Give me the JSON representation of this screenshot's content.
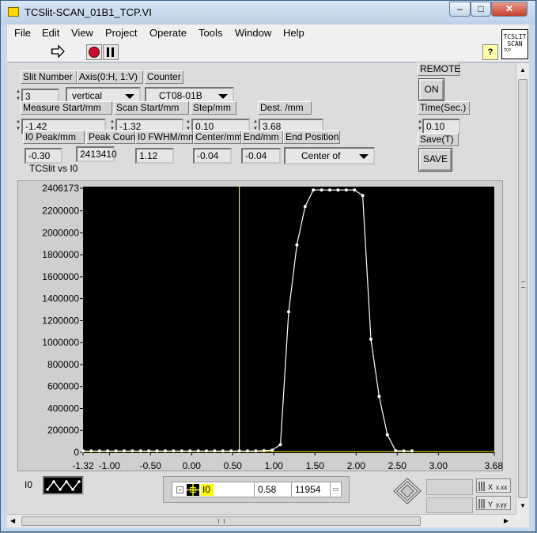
{
  "window": {
    "title": "TCSlit-SCAN_01B1_TCP.VI",
    "min_label": "–",
    "max_label": "□",
    "close_label": "✕"
  },
  "menu": [
    "File",
    "Edit",
    "View",
    "Project",
    "Operate",
    "Tools",
    "Window",
    "Help"
  ],
  "toolbar": {
    "run_icon": "run-arrow-icon",
    "abort_icon": "abort-icon",
    "pause_icon": "pause-icon",
    "help_label": "?",
    "vi_icon_line1": "TCSLIT",
    "vi_icon_line2": "SCAN",
    "vi_icon_line3": "TCP"
  },
  "controls": {
    "slit_number": {
      "label": "Slit Number",
      "value": "3"
    },
    "axis": {
      "label": "Axis(0:H, 1:V)",
      "value": "vertical"
    },
    "counter": {
      "label": "Counter",
      "value": "CT08-01B"
    },
    "remote": {
      "label": "REMOTE",
      "button": "ON"
    },
    "measure_start": {
      "label": "Measure Start/mm",
      "value": "-1.42"
    },
    "scan_start": {
      "label": "Scan Start/mm",
      "value": "-1.32"
    },
    "step": {
      "label": "Step/mm",
      "value": "0.10"
    },
    "dest": {
      "label": "Dest. /mm",
      "value": "3.68"
    },
    "time": {
      "label": "Time(Sec.)",
      "value": "0.10"
    },
    "i0_peak": {
      "label": "I0 Peak/mm",
      "value": "-0.30"
    },
    "peak_count": {
      "label": "Peak Count",
      "value": "2413410"
    },
    "i0_fwhm": {
      "label": "I0 FWHM/mm",
      "value": "1.12"
    },
    "center": {
      "label": "Center/mm",
      "value": "-0.04"
    },
    "end": {
      "label": "End/mm",
      "value": "-0.04"
    },
    "end_position": {
      "label": "End Position",
      "value": "Center of"
    },
    "save": {
      "label": "Save(T)",
      "button": "SAVE"
    }
  },
  "graph": {
    "title": "TCSlit vs I0",
    "legend_label": "I0",
    "cursor": {
      "name": "I0",
      "x": "0.58",
      "y": "11954"
    }
  },
  "colors": {
    "plot_bg": "#000000",
    "trace": "#ffffff",
    "cursor_line": "#ffffa0",
    "highlight": "#ffff00"
  },
  "chart_data": {
    "type": "line",
    "title": "TCSlit vs I0",
    "xlabel": "",
    "ylabel": "",
    "xlim": [
      -1.32,
      3.68
    ],
    "ylim": [
      0,
      2406173
    ],
    "x_ticks": [
      "-1.32",
      "-1.00",
      "-0.50",
      "0.00",
      "0.50",
      "1.00",
      "1.50",
      "2.00",
      "2.50",
      "3.00",
      "3.68"
    ],
    "y_ticks": [
      "2406173",
      "2200000",
      "2000000",
      "1800000",
      "1600000",
      "1400000",
      "1200000",
      "1000000",
      "800000",
      "600000",
      "400000",
      "200000",
      "0"
    ],
    "cursor_x": 0.58,
    "series": [
      {
        "name": "I0",
        "x": [
          -1.32,
          -1.22,
          -1.12,
          -1.02,
          -0.92,
          -0.82,
          -0.72,
          -0.62,
          -0.52,
          -0.42,
          -0.32,
          -0.22,
          -0.12,
          -0.02,
          0.08,
          0.18,
          0.28,
          0.38,
          0.48,
          0.58,
          0.68,
          0.78,
          0.88,
          0.98,
          1.08,
          1.18,
          1.28,
          1.38,
          1.48,
          1.58,
          1.68,
          1.78,
          1.88,
          1.98,
          2.08,
          2.18,
          2.28,
          2.38,
          2.48,
          2.58,
          2.68
        ],
        "values": [
          12000,
          12000,
          12000,
          12000,
          12000,
          12000,
          12000,
          12000,
          12000,
          12000,
          12000,
          12000,
          12000,
          12000,
          12000,
          12000,
          12000,
          12000,
          12000,
          11954,
          12000,
          12000,
          15000,
          20000,
          70000,
          1280000,
          1890000,
          2240000,
          2390000,
          2390000,
          2390000,
          2390000,
          2390000,
          2390000,
          2340000,
          1030000,
          510000,
          160000,
          15000,
          12000,
          12000
        ]
      }
    ]
  }
}
